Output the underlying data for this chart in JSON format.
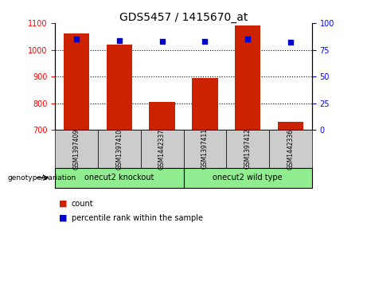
{
  "title": "GDS5457 / 1415670_at",
  "samples": [
    "GSM1397409",
    "GSM1397410",
    "GSM1442337",
    "GSM1397411",
    "GSM1397412",
    "GSM1442336"
  ],
  "counts": [
    1060,
    1020,
    805,
    895,
    1090,
    730
  ],
  "percentile_ranks": [
    85,
    84,
    83,
    83,
    85,
    82
  ],
  "ylim_left": [
    700,
    1100
  ],
  "ylim_right": [
    0,
    100
  ],
  "yticks_left": [
    700,
    800,
    900,
    1000,
    1100
  ],
  "yticks_right": [
    0,
    25,
    50,
    75,
    100
  ],
  "bar_color": "#CC2200",
  "dot_color": "#0000CC",
  "groups": [
    {
      "label": "onecut2 knockout",
      "start": 0,
      "end": 3
    },
    {
      "label": "onecut2 wild type",
      "start": 3,
      "end": 6
    }
  ],
  "group_label_prefix": "genotype/variation",
  "legend_items": [
    {
      "label": "count",
      "color": "#CC2200"
    },
    {
      "label": "percentile rank within the sample",
      "color": "#0000CC"
    }
  ],
  "grid_color": "black",
  "background_color": "#ffffff",
  "sample_box_color": "#cccccc",
  "group_box_color": "#90EE90",
  "base_value": 700
}
